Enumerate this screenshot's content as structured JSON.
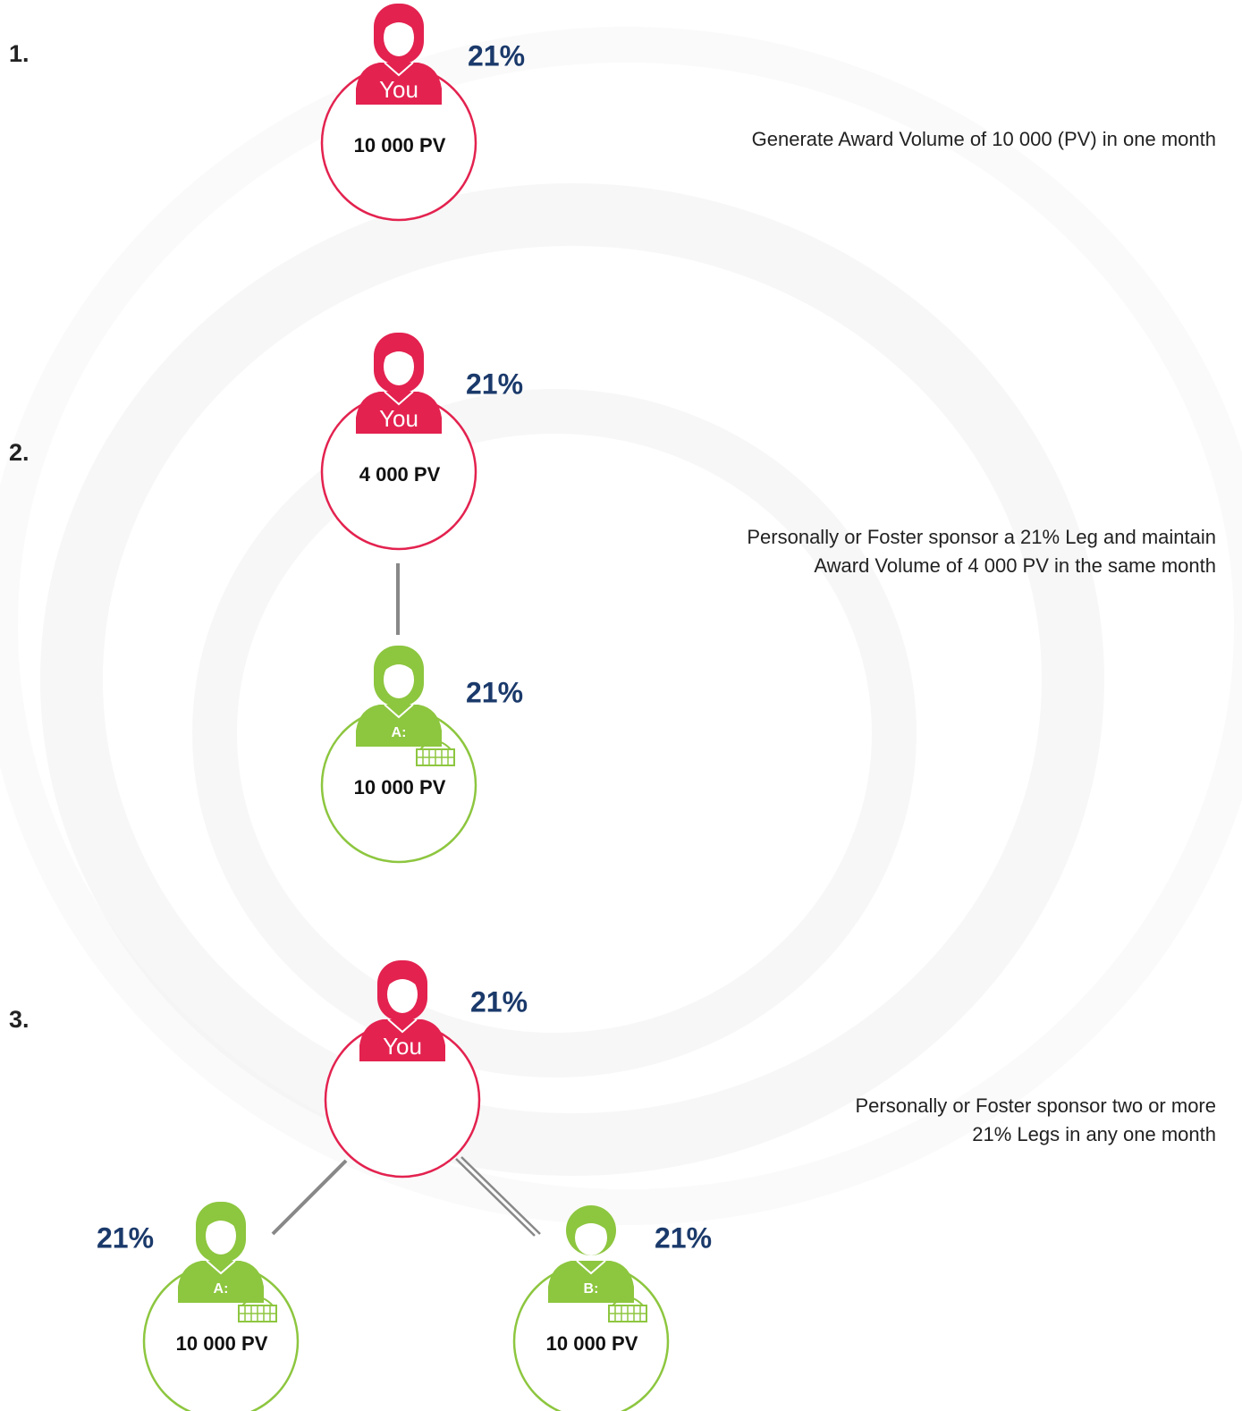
{
  "steps": [
    {
      "number": "1.",
      "description": [
        "Generate Award Volume of 10 000 (PV) in one month"
      ],
      "nodes": [
        {
          "label": "You",
          "percent": "21%",
          "volume": "10 000 PV"
        }
      ]
    },
    {
      "number": "2.",
      "description": [
        "Personally or Foster sponsor a 21% Leg and maintain",
        "Award Volume of 4 000 PV in the same month"
      ],
      "nodes": [
        {
          "label": "You",
          "percent": "21%",
          "volume": "4 000 PV"
        },
        {
          "label": "A:",
          "percent": "21%",
          "volume": "10 000 PV"
        }
      ]
    },
    {
      "number": "3.",
      "description": [
        "Personally or Foster sponsor two or more",
        "21% Legs in any one month"
      ],
      "nodes": [
        {
          "label": "You",
          "percent": "21%"
        },
        {
          "label": "A:",
          "percent": "21%",
          "volume": "10 000 PV"
        },
        {
          "label": "B:",
          "percent": "21%",
          "volume": "10 000 PV"
        }
      ]
    }
  ]
}
